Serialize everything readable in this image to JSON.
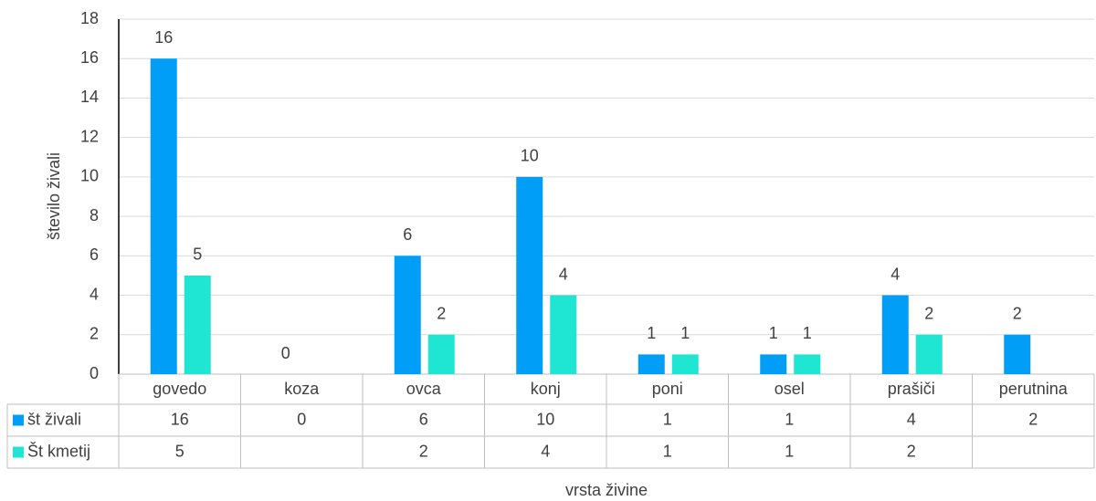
{
  "chart_data": {
    "type": "bar",
    "x_label": "vrsta živine",
    "y_label": "število živali",
    "categories": [
      "govedo",
      "koza",
      "ovca",
      "konj",
      "poni",
      "osel",
      "prašiči",
      "perutnina"
    ],
    "series": [
      {
        "name": "št živali",
        "color": "#009ef7",
        "values": [
          16,
          0,
          6,
          10,
          1,
          1,
          4,
          2
        ]
      },
      {
        "name": "Št kmetij",
        "color": "#1ee6d2",
        "values": [
          5,
          null,
          2,
          4,
          1,
          1,
          2,
          null
        ]
      }
    ],
    "ylim": [
      0,
      18
    ],
    "yticks": [
      0,
      2,
      4,
      6,
      8,
      10,
      12,
      14,
      16,
      18
    ],
    "grid": true
  }
}
